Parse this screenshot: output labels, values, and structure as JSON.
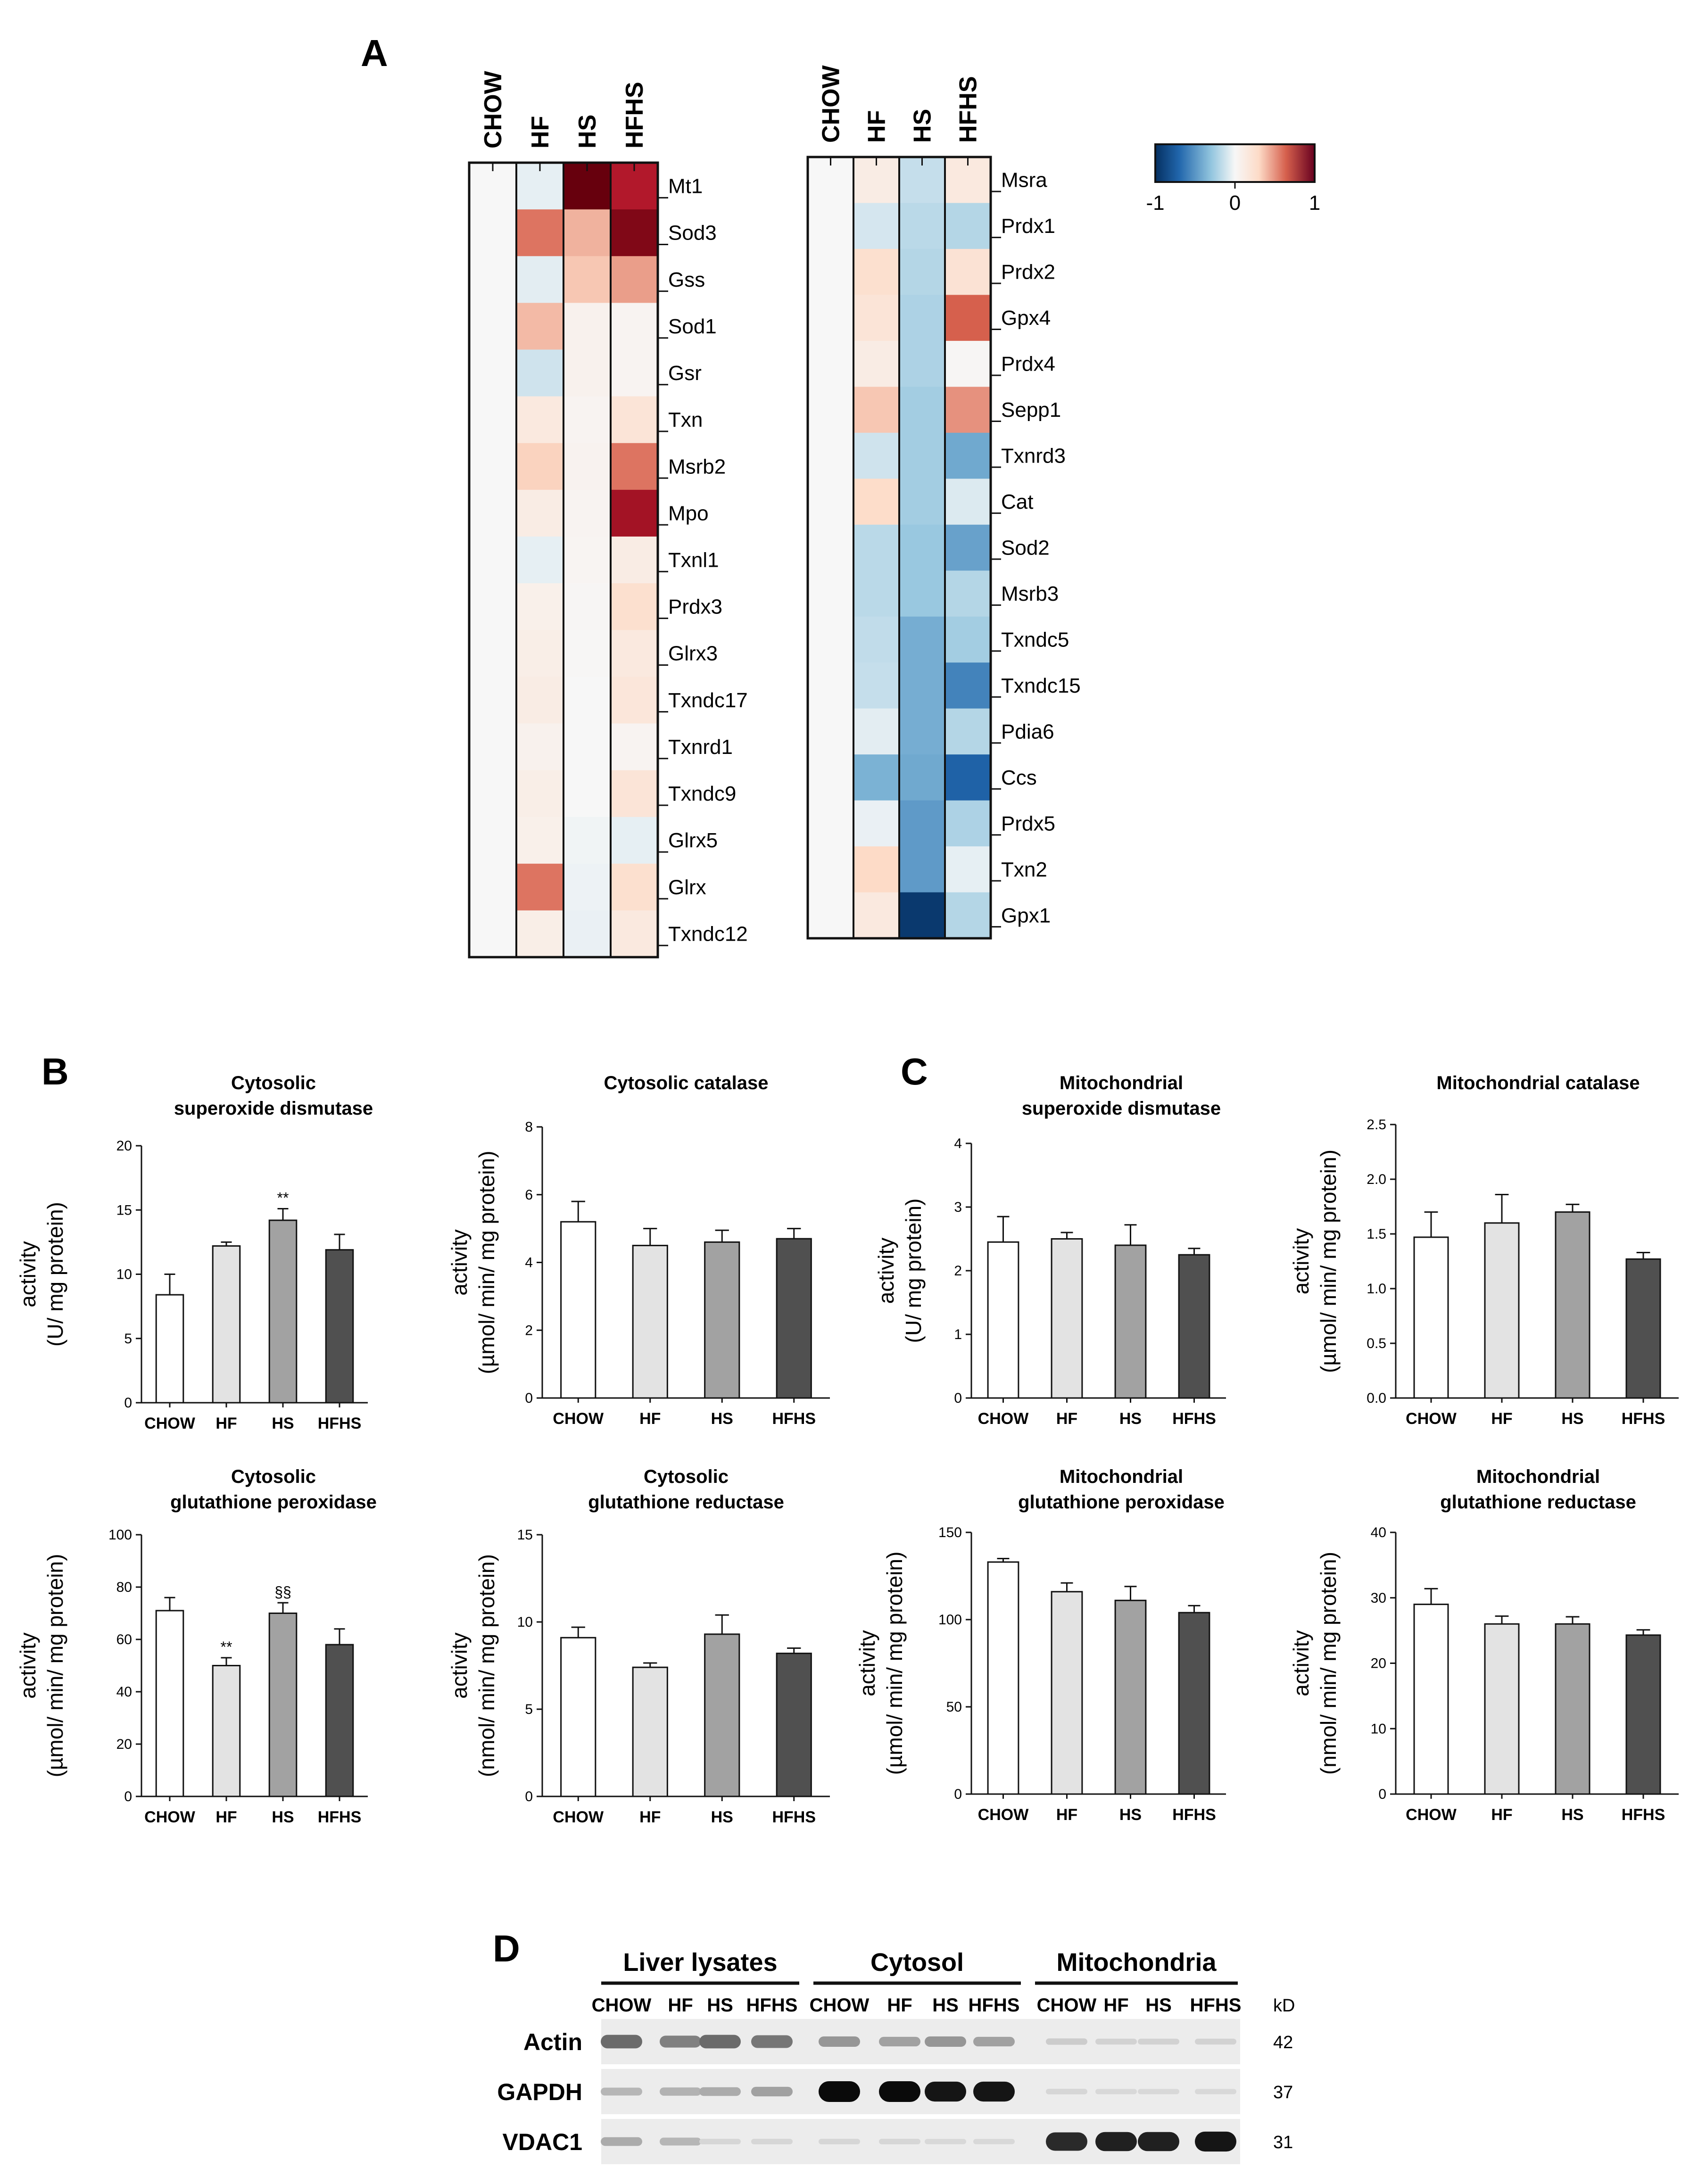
{
  "panel_labels": [
    "A",
    "B",
    "C",
    "D"
  ],
  "colors": {
    "CHOW": "#ffffff",
    "HF": "#e3e3e3",
    "HS": "#a2a2a2",
    "HFHS": "#505050",
    "heat_low": "#0571b0",
    "heat_mid": "#f7f7f7",
    "heat_high": "#67000d"
  },
  "chart_data": [
    {
      "id": "heatmap_left",
      "type": "heatmap",
      "columns": [
        "CHOW",
        "HF",
        "HS",
        "HFHS"
      ],
      "rows": [
        "Mt1",
        "Sod3",
        "Gss",
        "Sod1",
        "Gsr",
        "Txn",
        "Msrb2",
        "Mpo",
        "Txnl1",
        "Prdx3",
        "Glrx3",
        "Txndc17",
        "Txnrd1",
        "Txndc9",
        "Glrx5",
        "Glrx",
        "Txndc12"
      ],
      "values": [
        [
          0,
          -0.05,
          1.0,
          0.85
        ],
        [
          0,
          0.55,
          0.4,
          0.95
        ],
        [
          0,
          -0.06,
          0.35,
          0.45
        ],
        [
          0,
          0.38,
          0.06,
          0.04
        ],
        [
          0,
          -0.12,
          0.06,
          0.04
        ],
        [
          0,
          0.15,
          0.04,
          0.2
        ],
        [
          0,
          0.32,
          0.05,
          0.55
        ],
        [
          0,
          0.12,
          0.04,
          0.88
        ],
        [
          0,
          -0.05,
          0.03,
          0.12
        ],
        [
          0,
          0.08,
          0.02,
          0.25
        ],
        [
          0,
          0.1,
          0.01,
          0.15
        ],
        [
          0,
          0.12,
          0.0,
          0.18
        ],
        [
          0,
          0.06,
          0.0,
          0.04
        ],
        [
          0,
          0.1,
          0.0,
          0.2
        ],
        [
          0,
          0.08,
          -0.02,
          -0.05
        ],
        [
          0,
          0.55,
          -0.03,
          0.25
        ],
        [
          0,
          0.1,
          -0.04,
          0.15
        ]
      ],
      "color_range": [
        -1,
        1
      ]
    },
    {
      "id": "heatmap_right",
      "type": "heatmap",
      "columns": [
        "CHOW",
        "HF",
        "HS",
        "HFHS"
      ],
      "rows": [
        "Msra",
        "Prdx1",
        "Prdx2",
        "Gpx4",
        "Prdx4",
        "Sepp1",
        "Txnrd3",
        "Cat",
        "Sod2",
        "Msrb3",
        "Txndc5",
        "Txndc15",
        "Pdia6",
        "Ccs",
        "Prdx5",
        "Txn2",
        "Gpx1"
      ],
      "values": [
        [
          0,
          0.12,
          -0.15,
          0.15
        ],
        [
          0,
          -0.1,
          -0.18,
          -0.2
        ],
        [
          0,
          0.25,
          -0.2,
          0.22
        ],
        [
          0,
          0.2,
          -0.22,
          0.6
        ],
        [
          0,
          0.12,
          -0.22,
          0.02
        ],
        [
          0,
          0.35,
          -0.25,
          0.48
        ],
        [
          0,
          -0.12,
          -0.25,
          -0.42
        ],
        [
          0,
          0.28,
          -0.25,
          -0.08
        ],
        [
          0,
          -0.18,
          -0.28,
          -0.45
        ],
        [
          0,
          -0.18,
          -0.28,
          -0.2
        ],
        [
          0,
          -0.16,
          -0.4,
          -0.25
        ],
        [
          0,
          -0.15,
          -0.4,
          -0.58
        ],
        [
          0,
          -0.06,
          -0.4,
          -0.2
        ],
        [
          0,
          -0.38,
          -0.42,
          -0.72
        ],
        [
          0,
          -0.04,
          -0.48,
          -0.22
        ],
        [
          0,
          0.3,
          -0.48,
          -0.05
        ],
        [
          0,
          0.15,
          -0.95,
          -0.2
        ]
      ],
      "color_range": [
        -1,
        1
      ]
    },
    {
      "id": "B1",
      "type": "bar",
      "title": [
        "Cytosolic",
        "superoxide dismutase"
      ],
      "ylabel": [
        "activity",
        "(U/ mg protein)"
      ],
      "ylim": [
        0,
        20
      ],
      "yticks": [
        0,
        5,
        10,
        15,
        20
      ],
      "categories": [
        "CHOW",
        "HF",
        "HS",
        "HFHS"
      ],
      "values": [
        8.4,
        12.2,
        14.2,
        11.9
      ],
      "errors": [
        1.6,
        0.3,
        0.9,
        1.2
      ],
      "annotations": [
        "",
        "",
        "**",
        ""
      ]
    },
    {
      "id": "B2",
      "type": "bar",
      "title": [
        "Cytosolic catalase"
      ],
      "ylabel": [
        "activity",
        "(µmol/ min/ mg protein)"
      ],
      "ylim": [
        0,
        8
      ],
      "yticks": [
        0,
        2,
        4,
        6,
        8
      ],
      "categories": [
        "CHOW",
        "HF",
        "HS",
        "HFHS"
      ],
      "values": [
        5.2,
        4.5,
        4.6,
        4.7
      ],
      "errors": [
        0.6,
        0.5,
        0.35,
        0.3
      ],
      "annotations": [
        "",
        "",
        "",
        ""
      ]
    },
    {
      "id": "B3",
      "type": "bar",
      "title": [
        "Cytosolic",
        "glutathione peroxidase"
      ],
      "ylabel": [
        "activity",
        "(µmol/ min/ mg protein)"
      ],
      "ylim": [
        0,
        100
      ],
      "yticks": [
        0,
        20,
        40,
        60,
        80,
        100
      ],
      "categories": [
        "CHOW",
        "HF",
        "HS",
        "HFHS"
      ],
      "values": [
        71,
        50,
        70,
        58
      ],
      "errors": [
        5,
        3,
        4,
        6
      ],
      "annotations": [
        "",
        "**",
        "§§",
        ""
      ]
    },
    {
      "id": "B4",
      "type": "bar",
      "title": [
        "Cytosolic",
        "glutathione reductase"
      ],
      "ylabel": [
        "activity",
        "(nmol/ min/ mg protein)"
      ],
      "ylim": [
        0,
        15
      ],
      "yticks": [
        0,
        5,
        10,
        15
      ],
      "categories": [
        "CHOW",
        "HF",
        "HS",
        "HFHS"
      ],
      "values": [
        9.1,
        7.4,
        9.3,
        8.2
      ],
      "errors": [
        0.6,
        0.25,
        1.1,
        0.3
      ],
      "annotations": [
        "",
        "",
        "",
        ""
      ]
    },
    {
      "id": "C1",
      "type": "bar",
      "title": [
        "Mitochondrial",
        "superoxide dismutase"
      ],
      "ylabel": [
        "activity",
        "(U/ mg protein)"
      ],
      "ylim": [
        0,
        4
      ],
      "yticks": [
        0,
        1,
        2,
        3,
        4
      ],
      "categories": [
        "CHOW",
        "HF",
        "HS",
        "HFHS"
      ],
      "values": [
        2.45,
        2.5,
        2.4,
        2.25
      ],
      "errors": [
        0.4,
        0.1,
        0.32,
        0.1
      ],
      "annotations": [
        "",
        "",
        "",
        ""
      ]
    },
    {
      "id": "C2",
      "type": "bar",
      "title": [
        "Mitochondrial catalase"
      ],
      "ylabel": [
        "activity",
        "(µmol/ min/ mg protein)"
      ],
      "ylim": [
        0,
        2.5
      ],
      "yticks": [
        "0.0",
        "0.5",
        "1.0",
        "1.5",
        "2.0",
        "2.5"
      ],
      "categories": [
        "CHOW",
        "HF",
        "HS",
        "HFHS"
      ],
      "values": [
        1.47,
        1.6,
        1.7,
        1.27
      ],
      "errors": [
        0.23,
        0.26,
        0.07,
        0.06
      ],
      "annotations": [
        "",
        "",
        "",
        ""
      ]
    },
    {
      "id": "C3",
      "type": "bar",
      "title": [
        "Mitochondrial",
        "glutathione peroxidase"
      ],
      "ylabel": [
        "activity",
        "(µmol/ min/ mg protein)"
      ],
      "ylim": [
        0,
        150
      ],
      "yticks": [
        0,
        50,
        100,
        150
      ],
      "categories": [
        "CHOW",
        "HF",
        "HS",
        "HFHS"
      ],
      "values": [
        133,
        116,
        111,
        104
      ],
      "errors": [
        2,
        5,
        8,
        4
      ],
      "annotations": [
        "",
        "",
        "",
        ""
      ]
    },
    {
      "id": "C4",
      "type": "bar",
      "title": [
        "Mitochondrial",
        "glutathione reductase"
      ],
      "ylabel": [
        "activity",
        "(nmol/ min/ mg protein)"
      ],
      "ylim": [
        0,
        40
      ],
      "yticks": [
        0,
        10,
        20,
        30,
        40
      ],
      "categories": [
        "CHOW",
        "HF",
        "HS",
        "HFHS"
      ],
      "values": [
        29,
        26,
        26,
        24.3
      ],
      "errors": [
        2.4,
        1.2,
        1.1,
        0.8
      ],
      "annotations": [
        "",
        "",
        "",
        ""
      ]
    }
  ],
  "legend": {
    "min_label": "-1",
    "mid_label": "0",
    "max_label": "1"
  },
  "western_blot": {
    "groups": [
      "Liver lysates",
      "Cytosol",
      "Mitochondria"
    ],
    "lanes": [
      "CHOW",
      "HF",
      "HS",
      "HFHS",
      "CHOW",
      "HF",
      "HS",
      "HFHS",
      "CHOW",
      "HF",
      "HS",
      "HFHS"
    ],
    "rows": [
      {
        "name": "Actin",
        "kd": "42",
        "intensity": [
          0.55,
          0.45,
          0.55,
          0.5,
          0.35,
          0.3,
          0.35,
          0.3,
          0.1,
          0.07,
          0.07,
          0.07
        ]
      },
      {
        "name": "GAPDH",
        "kd": "37",
        "intensity": [
          0.2,
          0.22,
          0.25,
          0.3,
          1.0,
          1.0,
          0.95,
          0.95,
          0.05,
          0.04,
          0.04,
          0.04
        ]
      },
      {
        "name": "VDAC1",
        "kd": "31",
        "intensity": [
          0.25,
          0.2,
          0.05,
          0.05,
          0.05,
          0.05,
          0.04,
          0.04,
          0.85,
          0.9,
          0.9,
          0.95
        ]
      }
    ],
    "kd_label": "kD"
  }
}
